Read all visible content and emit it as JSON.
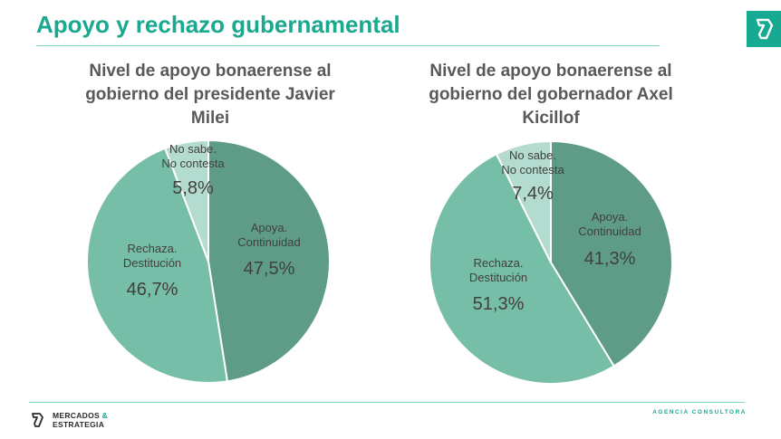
{
  "header": {
    "title": "Apoyo y rechazo gubernamental"
  },
  "chart_data": [
    {
      "type": "pie",
      "title": "Nivel de apoyo bonaerense al gobierno del presidente Javier Milei",
      "slices": [
        {
          "label": "Apoya. Continuidad",
          "value": 47.5,
          "display": "47,5%",
          "color": "#5f9c88"
        },
        {
          "label": "Rechaza. Destitución",
          "value": 46.7,
          "display": "46,7%",
          "color": "#76bea7"
        },
        {
          "label": "No sabe. No contesta",
          "value": 5.8,
          "display": "5,8%",
          "color": "#b3dbcf"
        }
      ]
    },
    {
      "type": "pie",
      "title": "Nivel de apoyo bonaerense al gobierno del gobernador Axel Kicillof",
      "slices": [
        {
          "label": "Apoya. Continuidad",
          "value": 41.3,
          "display": "41,3%",
          "color": "#5f9c88"
        },
        {
          "label": "Rechaza. Destitución",
          "value": 51.3,
          "display": "51,3%",
          "color": "#76bea7"
        },
        {
          "label": "No sabe. No contesta",
          "value": 7.4,
          "display": "7,4%",
          "color": "#b3dbcf"
        }
      ]
    }
  ],
  "footer": {
    "brand_line1": "MERCADOS",
    "brand_amp": "&",
    "brand_line2": "ESTRATEGIA",
    "tagline": "AGENCIA CONSULTORA"
  },
  "colors": {
    "accent": "#17a991",
    "title": "#1aa88f",
    "chart_title": "#595959",
    "label": "#404040"
  },
  "icons": {
    "corner": "brand-mark-icon",
    "footer": "brand-mark-icon"
  }
}
